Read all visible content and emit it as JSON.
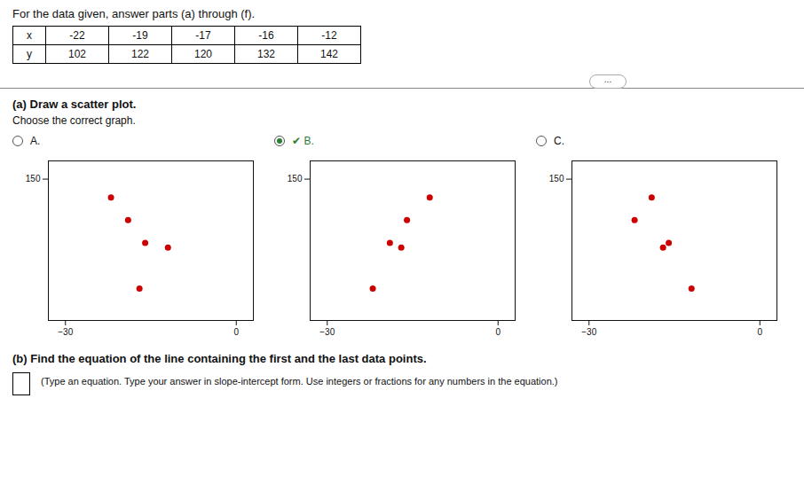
{
  "title": "For the data given, answer parts (a) through (f).",
  "table": {
    "row_labels": [
      "x",
      "y"
    ],
    "rows": [
      [
        -22,
        -19,
        -17,
        -16,
        -12
      ],
      [
        102,
        122,
        120,
        132,
        142
      ]
    ]
  },
  "annotations": [
    "...",
    "(a) Draw a scatter plot.",
    "Choose the correct graph.",
    "(b) Find the equation of the line containing the first and the last data points.",
    "(Type an equation. Type your answer in slope-intercept form. Use integers or fractions for any numbers in the equation.)"
  ],
  "chart_data": [
    {
      "type": "scatter",
      "title": "A.",
      "x": [
        -22,
        -19,
        -17,
        -16,
        -12
      ],
      "values": [
        142,
        132,
        102,
        122,
        120
      ],
      "color": "#cc0000",
      "xlim": [
        -33,
        3
      ],
      "ylim": [
        88,
        158
      ],
      "xticks": [
        -30,
        0
      ],
      "yticks": [
        150
      ],
      "grid": false
    },
    {
      "type": "scatter",
      "title": "✔ B.",
      "x": [
        -22,
        -19,
        -17,
        -16,
        -12
      ],
      "values": [
        102,
        122,
        120,
        132,
        142
      ],
      "color": "#cc0000",
      "xlim": [
        -33,
        3
      ],
      "ylim": [
        88,
        158
      ],
      "xticks": [
        -30,
        0
      ],
      "yticks": [
        150
      ],
      "grid": false
    },
    {
      "type": "scatter",
      "title": "C.",
      "x": [
        -22,
        -19,
        -17,
        -16,
        -12
      ],
      "values": [
        132,
        142,
        120,
        122,
        102
      ],
      "color": "#cc0000",
      "xlim": [
        -33,
        3
      ],
      "ylim": [
        88,
        158
      ],
      "xticks": [
        -30,
        0
      ],
      "yticks": [
        150
      ],
      "grid": false
    }
  ]
}
